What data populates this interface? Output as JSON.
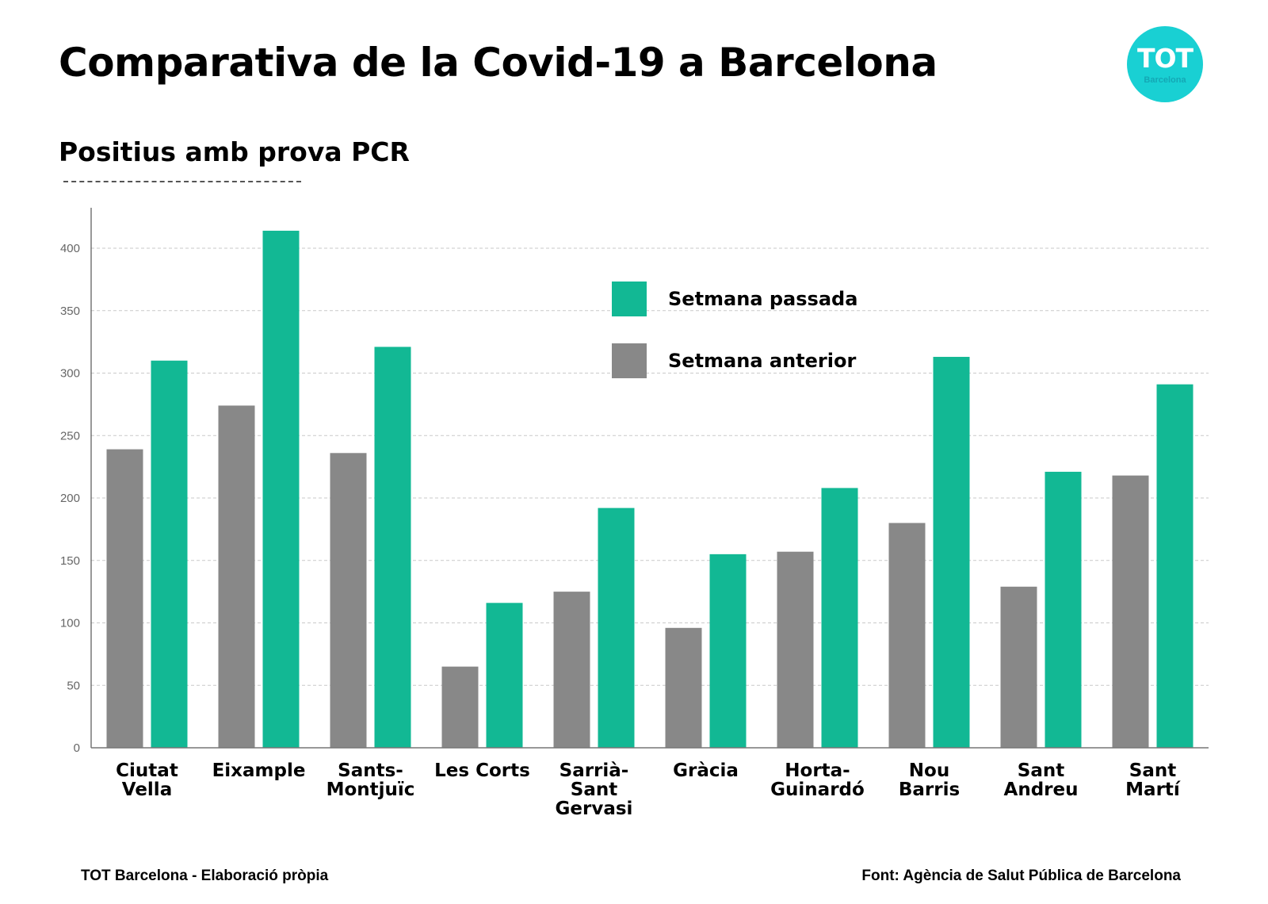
{
  "header": {
    "title": "Comparativa de la Covid-19 a Barcelona",
    "subtitle": "Positius amb prova PCR"
  },
  "logo": {
    "main": "TOT",
    "sub": "Barcelona",
    "color": "#19d0d3"
  },
  "footer": {
    "left": "TOT Barcelona - Elaboració pròpia",
    "right": "Font: Agència de Salut Pública de Barcelona"
  },
  "chart_data": {
    "type": "bar",
    "categories": [
      [
        "Ciutat",
        "Vella"
      ],
      [
        "Eixample"
      ],
      [
        "Sants-",
        "Montjuïc"
      ],
      [
        "Les Corts"
      ],
      [
        "Sarrià-",
        "Sant",
        "Gervasi"
      ],
      [
        "Gràcia"
      ],
      [
        "Horta-",
        "Guinardó"
      ],
      [
        "Nou",
        "Barris"
      ],
      [
        "Sant",
        "Andreu"
      ],
      [
        "Sant",
        "Martí"
      ]
    ],
    "series": [
      {
        "name": "Setmana anterior",
        "color": "#888888",
        "values": [
          239,
          274,
          236,
          65,
          125,
          96,
          157,
          180,
          129,
          218
        ]
      },
      {
        "name": "Setmana passada",
        "color": "#12b894",
        "values": [
          310,
          414,
          321,
          116,
          192,
          155,
          208,
          313,
          221,
          291
        ]
      }
    ],
    "legend_order": [
      1,
      0
    ],
    "yticks": [
      0,
      50,
      100,
      150,
      200,
      250,
      300,
      350,
      400
    ],
    "ylim": [
      0,
      435
    ],
    "grid": true,
    "legend_position": "top-center"
  }
}
